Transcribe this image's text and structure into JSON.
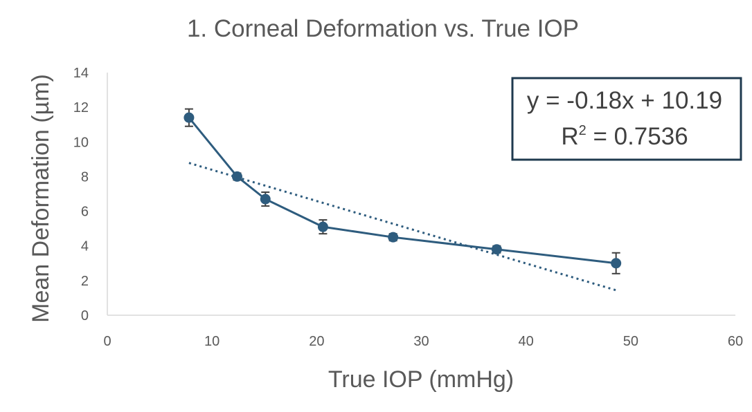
{
  "chart_data": {
    "type": "scatter",
    "title": "1. Corneal Deformation vs. True IOP",
    "xlabel": "True IOP (mmHg)",
    "ylabel": "Mean Deformation  (µm)",
    "xlim": [
      0,
      60
    ],
    "ylim": [
      0,
      14
    ],
    "x_ticks": [
      "0",
      "10",
      "20",
      "30",
      "40",
      "50",
      "60"
    ],
    "y_ticks": [
      "0",
      "2",
      "4",
      "6",
      "8",
      "10",
      "12",
      "14"
    ],
    "grid": false,
    "series": [
      {
        "x": [
          7.8,
          12.4,
          15.1,
          20.6,
          27.3,
          37.2,
          48.6
        ],
        "y": [
          11.4,
          8.0,
          6.7,
          5.1,
          4.5,
          3.8,
          3.0
        ],
        "error": [
          0.5,
          0.2,
          0.4,
          0.4,
          0.2,
          0.2,
          0.6
        ],
        "color": "#2e5c7e",
        "style": "line+markers with error bars"
      }
    ],
    "trendline": {
      "type": "linear",
      "slope": -0.18,
      "intercept": 10.19,
      "x_range": [
        7.8,
        48.6
      ],
      "style": "dotted",
      "color": "#2e5c7e"
    },
    "annotation": {
      "line1": "y = -0.18x + 10.19",
      "line2_prefix": "R",
      "line2_sup": "2",
      "line2_suffix": " = 0.7536",
      "border_color": "#1f3a4f"
    }
  }
}
